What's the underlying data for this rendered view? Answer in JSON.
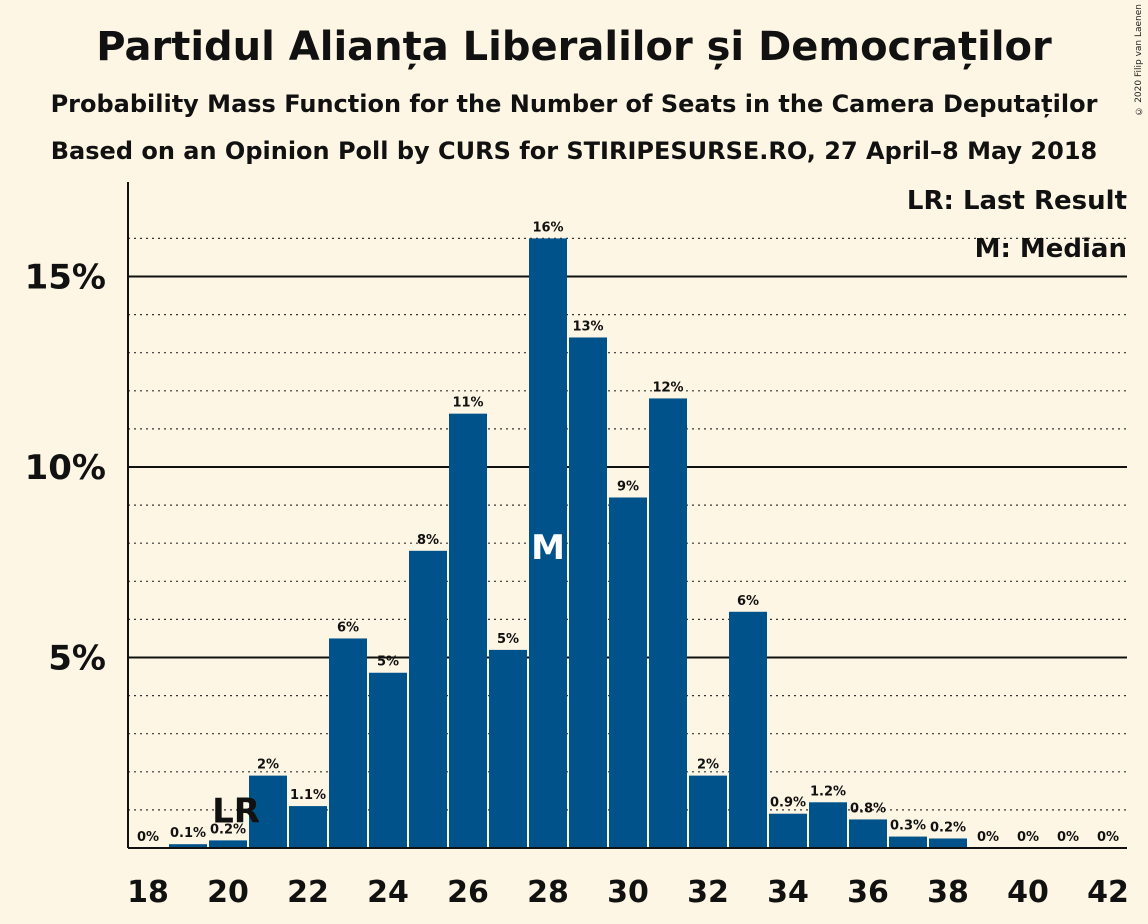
{
  "title": "Partidul Alianța Liberalilor și Democraților",
  "subtitle1": "Probability Mass Function for the Number of Seats in the Camera Deputaților",
  "subtitle2": "Based on an Opinion Poll by CURS for STIRIPESURSE.RO, 27 April–8 May 2018",
  "copyright": "© 2020 Filip van Laenen",
  "legend": {
    "lr": "LR: Last Result",
    "m": "M: Median"
  },
  "markers": {
    "last_result_label": "LR",
    "median_label": "M"
  },
  "colors": {
    "bar": "#00538a",
    "background": "#fdf6e4"
  },
  "chart_data": {
    "type": "bar",
    "x": [
      18,
      19,
      20,
      21,
      22,
      23,
      24,
      25,
      26,
      27,
      28,
      29,
      30,
      31,
      32,
      33,
      34,
      35,
      36,
      37,
      38,
      39,
      40,
      41,
      42
    ],
    "values": [
      0,
      0.1,
      0.2,
      1.9,
      1.1,
      5.5,
      4.6,
      7.8,
      11.4,
      5.2,
      16.0,
      13.4,
      9.2,
      11.8,
      1.9,
      6.2,
      0.9,
      1.2,
      0.75,
      0.3,
      0.25,
      0,
      0,
      0,
      0
    ],
    "bar_labels": [
      "0%",
      "0.1%",
      "0.2%",
      "2%",
      "1.1%",
      "6%",
      "5%",
      "8%",
      "11%",
      "5%",
      "16%",
      "13%",
      "9%",
      "12%",
      "2%",
      "6%",
      "0.9%",
      "1.2%",
      "0.8%",
      "0.3%",
      "0.2%",
      "0%",
      "0%",
      "0%",
      "0%"
    ],
    "x_tick_labels": [
      "18",
      "20",
      "22",
      "24",
      "26",
      "28",
      "30",
      "32",
      "34",
      "36",
      "38",
      "40",
      "42"
    ],
    "y_ticks": [
      5,
      10,
      15
    ],
    "y_tick_labels": [
      "5%",
      "10%",
      "15%"
    ],
    "ylim": [
      0,
      17.5
    ],
    "last_result_x": 20,
    "median_x": 28,
    "legend_position": "top-right"
  }
}
